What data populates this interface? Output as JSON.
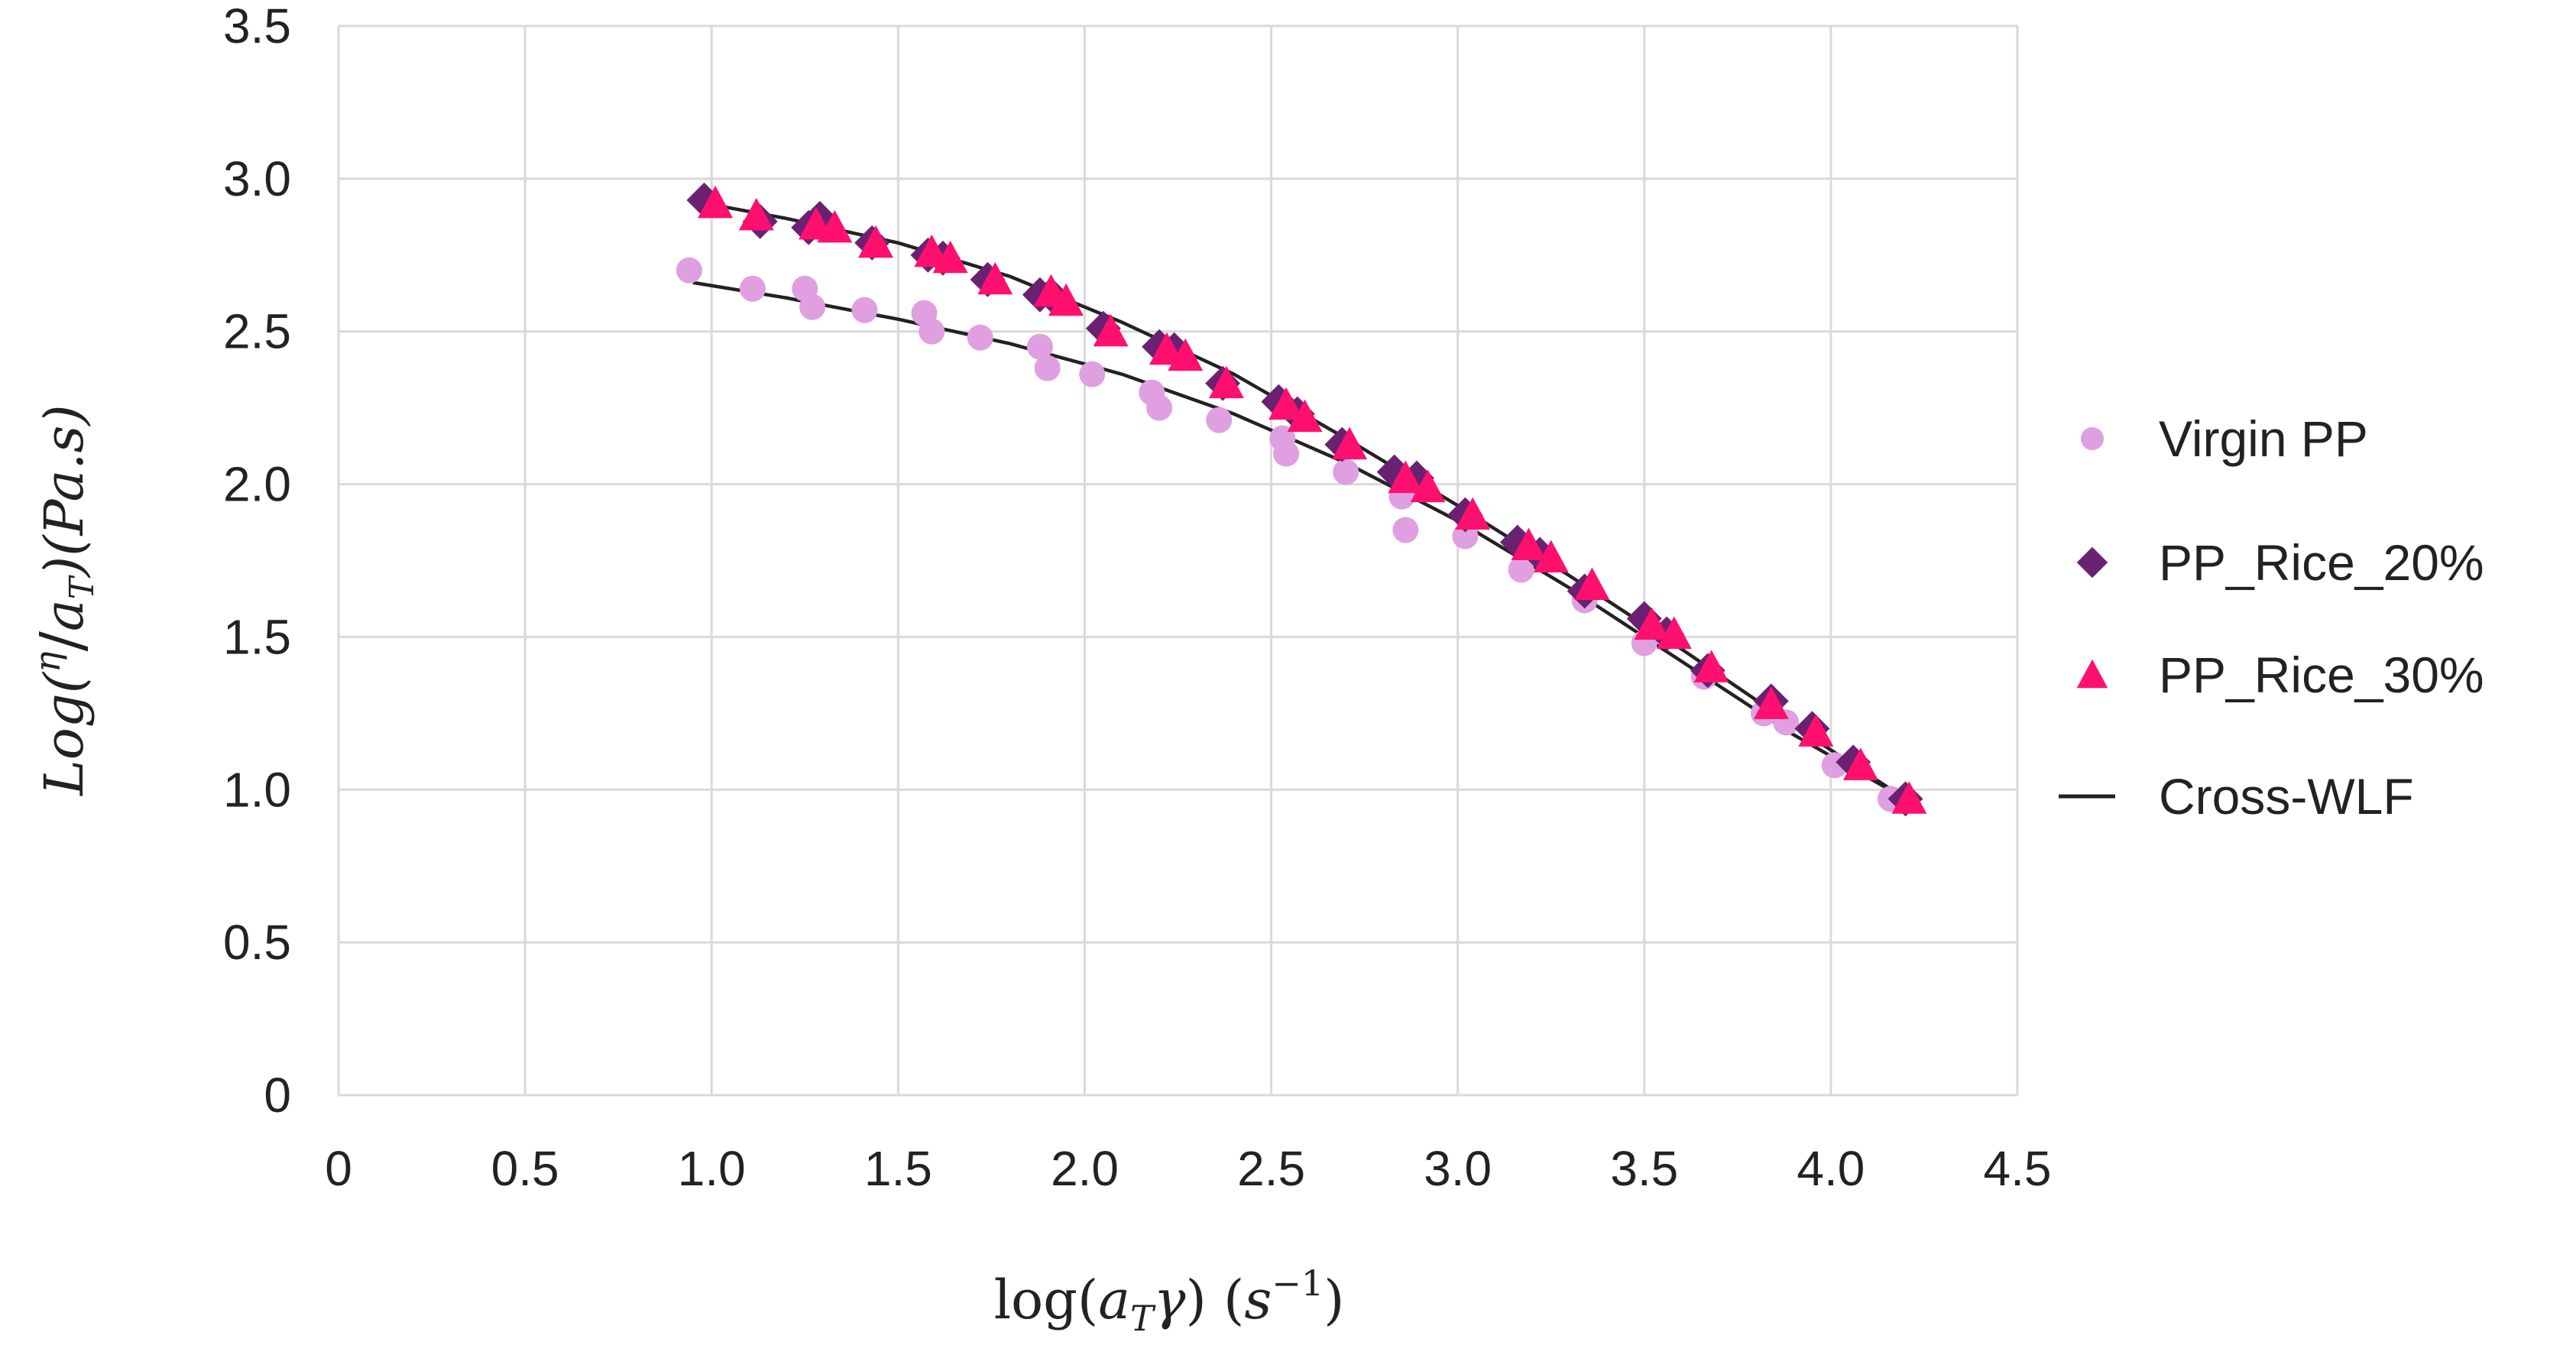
{
  "chart_data": {
    "type": "scatter",
    "xlabel": "log(a_Tγ) (s⁻¹)",
    "ylabel": "Log(η/a_T)(Pa.s)",
    "xlim": [
      0,
      4.5
    ],
    "ylim": [
      0,
      3.5
    ],
    "x_ticks": [
      0,
      0.5,
      1.0,
      1.5,
      2.0,
      2.5,
      3.0,
      3.5,
      4.0,
      4.5
    ],
    "x_tick_labels": [
      "0",
      "0.5",
      "1.0",
      "1.5",
      "2.0",
      "2.5",
      "3.0",
      "3.5",
      "4.0",
      "4.5"
    ],
    "y_ticks": [
      0,
      0.5,
      1.0,
      1.5,
      2.0,
      2.5,
      3.0,
      3.5
    ],
    "y_tick_labels": [
      "0",
      "0.5",
      "1.0",
      "1.5",
      "2.0",
      "2.5",
      "3.0",
      "3.5"
    ],
    "grid": true,
    "legend_position": "right",
    "series": [
      {
        "name": "Virgin PP",
        "marker": "circle",
        "color": "#df9fe0",
        "x": [
          0.94,
          1.11,
          1.25,
          1.27,
          1.41,
          1.57,
          1.59,
          1.72,
          1.88,
          1.9,
          2.02,
          2.18,
          2.2,
          2.36,
          2.53,
          2.54,
          2.7,
          2.85,
          2.86,
          3.02,
          3.17,
          3.34,
          3.5,
          3.66,
          3.82,
          3.88,
          4.01,
          4.16
        ],
        "y": [
          2.7,
          2.64,
          2.64,
          2.58,
          2.57,
          2.56,
          2.5,
          2.48,
          2.45,
          2.38,
          2.36,
          2.3,
          2.25,
          2.21,
          2.15,
          2.1,
          2.04,
          1.96,
          1.85,
          1.83,
          1.72,
          1.62,
          1.48,
          1.37,
          1.25,
          1.22,
          1.08,
          0.97
        ]
      },
      {
        "name": "PP_Rice_20%",
        "marker": "diamond",
        "color": "#6b2171",
        "x": [
          0.98,
          1.13,
          1.26,
          1.29,
          1.43,
          1.58,
          1.62,
          1.74,
          1.88,
          1.91,
          2.05,
          2.2,
          2.24,
          2.37,
          2.52,
          2.57,
          2.69,
          2.83,
          2.89,
          3.02,
          3.16,
          3.22,
          3.34,
          3.5,
          3.56,
          3.67,
          3.84,
          3.95,
          4.06,
          4.2
        ],
        "y": [
          2.93,
          2.86,
          2.84,
          2.87,
          2.79,
          2.75,
          2.74,
          2.67,
          2.62,
          2.62,
          2.51,
          2.45,
          2.44,
          2.33,
          2.27,
          2.23,
          2.13,
          2.04,
          2.02,
          1.9,
          1.81,
          1.77,
          1.65,
          1.56,
          1.51,
          1.39,
          1.29,
          1.2,
          1.09,
          0.97
        ]
      },
      {
        "name": "PP_Rice_30%",
        "marker": "triangle",
        "color": "#ff0f6e",
        "x": [
          1.01,
          1.12,
          1.28,
          1.33,
          1.44,
          1.59,
          1.64,
          1.76,
          1.91,
          1.95,
          2.07,
          2.22,
          2.27,
          2.38,
          2.54,
          2.59,
          2.71,
          2.86,
          2.92,
          3.04,
          3.19,
          3.25,
          3.36,
          3.52,
          3.58,
          3.68,
          3.84,
          3.96,
          4.08,
          4.21
        ],
        "y": [
          2.92,
          2.88,
          2.85,
          2.84,
          2.79,
          2.76,
          2.74,
          2.67,
          2.63,
          2.6,
          2.5,
          2.44,
          2.42,
          2.33,
          2.26,
          2.22,
          2.13,
          2.02,
          1.99,
          1.9,
          1.8,
          1.76,
          1.67,
          1.54,
          1.51,
          1.4,
          1.28,
          1.19,
          1.08,
          0.97
        ]
      },
      {
        "name": "Cross-WLF",
        "marker": "line",
        "color": "#222222",
        "fits": [
          {
            "x": [
              0.95,
              1.2,
              1.5,
              1.8,
              2.1,
              2.4,
              2.7,
              3.0,
              3.3,
              3.6,
              3.9,
              4.2
            ],
            "y": [
              2.66,
              2.61,
              2.54,
              2.46,
              2.36,
              2.23,
              2.07,
              1.88,
              1.66,
              1.42,
              1.18,
              0.97
            ]
          },
          {
            "x": [
              0.98,
              1.2,
              1.5,
              1.8,
              2.1,
              2.4,
              2.7,
              3.0,
              3.3,
              3.6,
              3.9,
              4.2
            ],
            "y": [
              2.92,
              2.87,
              2.79,
              2.68,
              2.53,
              2.36,
              2.15,
              1.93,
              1.7,
              1.46,
              1.21,
              0.97
            ]
          }
        ]
      }
    ]
  }
}
